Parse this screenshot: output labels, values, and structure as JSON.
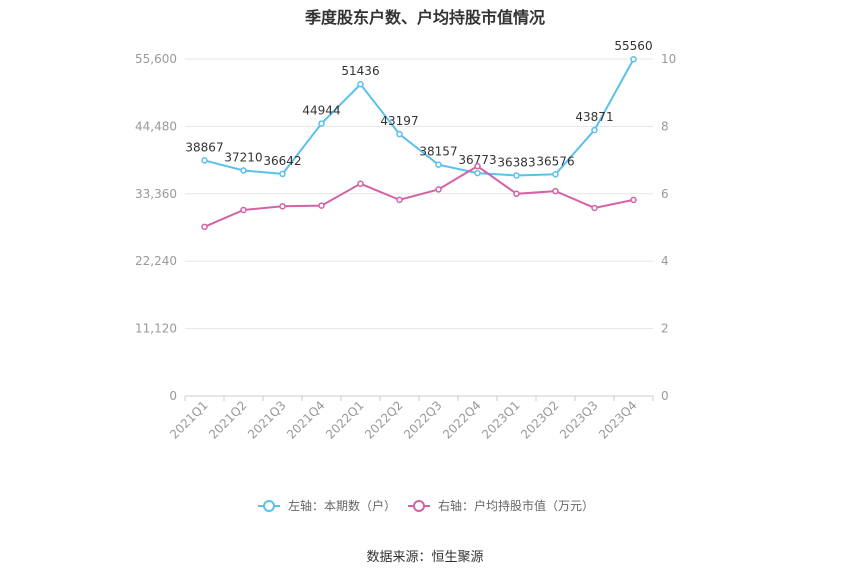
{
  "title": "季度股东户数、户均持股市值情况",
  "source": "数据来源：恒生聚源",
  "chart_data": {
    "type": "line",
    "categories": [
      "2021Q1",
      "2021Q2",
      "2021Q3",
      "2021Q4",
      "2022Q1",
      "2022Q2",
      "2022Q3",
      "2022Q4",
      "2023Q1",
      "2023Q2",
      "2023Q3",
      "2023Q4"
    ],
    "left_axis": {
      "min": 0,
      "max": 55600,
      "ticks": [
        "0",
        "11,120",
        "22,240",
        "33,360",
        "44,480",
        "55,600"
      ]
    },
    "right_axis": {
      "min": 0,
      "max": 10,
      "ticks": [
        "0",
        "2",
        "4",
        "6",
        "8",
        "10"
      ]
    },
    "series": [
      {
        "name": "左轴：本期数（户）",
        "axis": "left",
        "color": "#5bc0eb",
        "values": [
          38867,
          37210,
          36642,
          44944,
          51436,
          43197,
          38157,
          36773,
          36383,
          36576,
          43871,
          55560
        ],
        "labels": [
          "38867",
          "37210",
          "36642",
          "44944",
          "51436",
          "43197",
          "38157",
          "36773",
          "36383",
          "36576",
          "43871",
          "55560"
        ]
      },
      {
        "name": "右轴：户均持股市值（万元）",
        "axis": "right",
        "color": "#d462a6",
        "values": [
          5.02,
          5.52,
          5.63,
          5.65,
          6.3,
          5.82,
          6.13,
          6.82,
          6.0,
          6.08,
          5.58,
          5.82
        ]
      }
    ],
    "grid": true,
    "legend": "bottom"
  }
}
